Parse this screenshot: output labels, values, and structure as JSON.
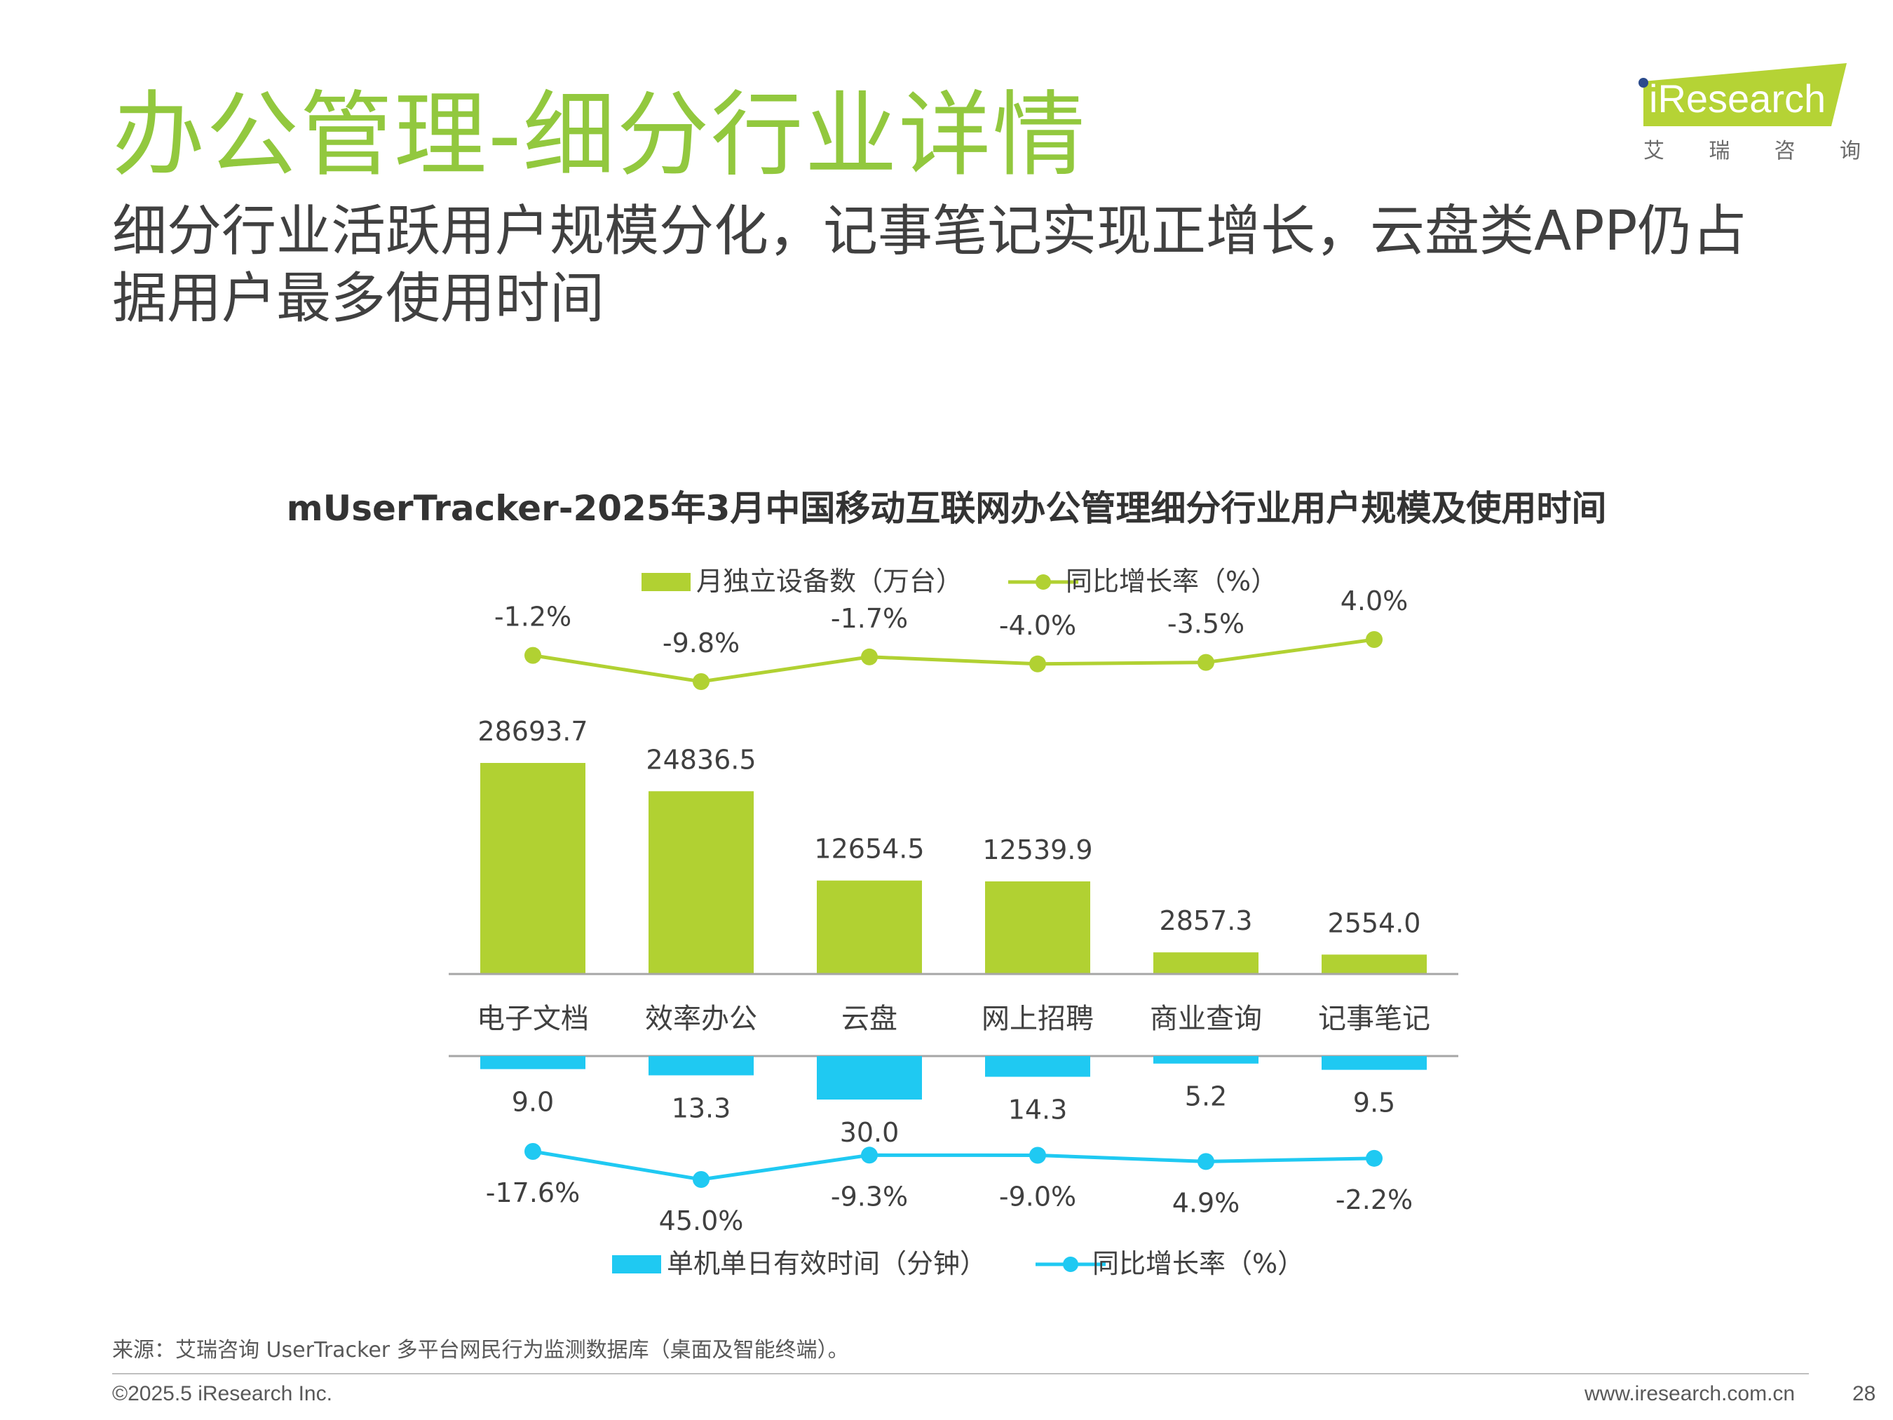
{
  "header": {
    "title": "办公管理-细分行业详情",
    "subtitle": "细分行业活跃用户规模分化，记事笔记实现正增长，云盘类APP仍占据用户最多使用时间"
  },
  "logo": {
    "wordmark": "iResearch",
    "chinese": [
      "艾",
      "瑞",
      "咨",
      "询"
    ]
  },
  "colors": {
    "title_green": "#92c83e",
    "bar_green": "#b1d132",
    "bar_blue": "#1fc9f2",
    "text_gray": "#404040"
  },
  "chart_data": {
    "type": "bar",
    "title": "mUserTracker-2025年3月中国移动互联网办公管理细分行业用户规模及使用时间",
    "categories": [
      "电子文档",
      "效率办公",
      "云盘",
      "网上招聘",
      "商业查询",
      "记事笔记"
    ],
    "top": {
      "legend": [
        "月独立设备数（万台）",
        "同比增长率（%）"
      ],
      "bars": {
        "name": "月独立设备数（万台）",
        "values": [
          28693.7,
          24836.5,
          12654.5,
          12539.9,
          2857.3,
          2554.0
        ],
        "labels": [
          "28693.7",
          "24836.5",
          "12654.5",
          "12539.9",
          "2857.3",
          "2554.0"
        ]
      },
      "growth": {
        "name": "同比增长率（%）",
        "values": [
          -1.2,
          -9.8,
          -1.7,
          -4.0,
          -3.5,
          4.0
        ],
        "labels": [
          "-1.2%",
          "-9.8%",
          "-1.7%",
          "-4.0%",
          "-3.5%",
          "4.0%"
        ]
      }
    },
    "bottom": {
      "legend": [
        "单机单日有效时间（分钟）",
        "同比增长率（%）"
      ],
      "bars": {
        "name": "单机单日有效时间（分钟）",
        "values": [
          9.0,
          13.3,
          30.0,
          14.3,
          5.2,
          9.5
        ],
        "labels": [
          "9.0",
          "13.3",
          "30.0",
          "14.3",
          "5.2",
          "9.5"
        ]
      },
      "growth": {
        "name": "同比增长率（%）",
        "values": [
          -17.6,
          45.0,
          -9.3,
          -9.0,
          4.9,
          -2.2
        ],
        "labels": [
          "-17.6%",
          "45.0%",
          "-9.3%",
          "-9.0%",
          "4.9%",
          "-2.2%"
        ]
      }
    }
  },
  "footer": {
    "source": "来源：艾瑞咨询 UserTracker 多平台网民行为监测数据库（桌面及智能终端）。",
    "copyright": "©2025.5 iResearch Inc.",
    "website": "www.iresearch.com.cn",
    "page_number": "28"
  }
}
